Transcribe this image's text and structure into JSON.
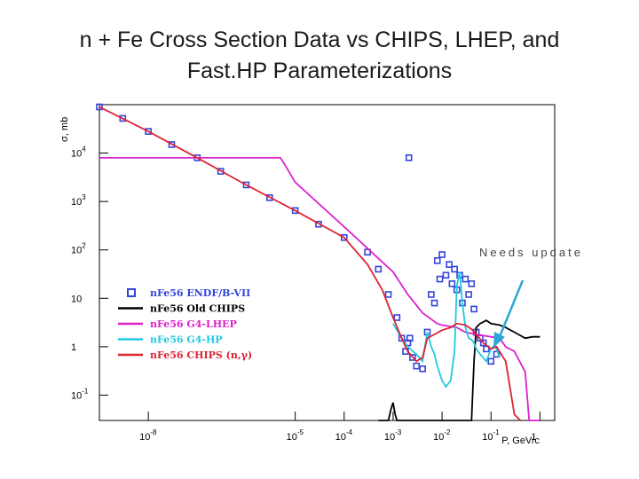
{
  "slide": {
    "title_line1": "n + Fe Cross Section Data vs CHIPS, LHEP, and",
    "title_line2": "Fast.HP Parameterizations"
  },
  "annotation": {
    "text": "Needs update",
    "arrow_color": "#2aa6d8"
  },
  "chart_data": {
    "type": "line",
    "title": "",
    "xlabel": "P, GeV/c",
    "ylabel": "σ, mb",
    "x_scale": "log",
    "y_scale": "log",
    "xlim": [
      1e-09,
      2
    ],
    "ylim": [
      0.03,
      100000
    ],
    "x_ticks": [
      {
        "base": "10",
        "exp": "-8",
        "value": 1e-08
      },
      {
        "base": "10",
        "exp": "-5",
        "value": 1e-05
      },
      {
        "base": "10",
        "exp": "-4",
        "value": 0.0001
      },
      {
        "base": "10",
        "exp": "-3",
        "value": 0.001
      },
      {
        "base": "10",
        "exp": "-2",
        "value": 0.01
      },
      {
        "base": "10",
        "exp": "-1",
        "value": 0.1
      },
      {
        "base": "1",
        "exp": "",
        "value": 1
      }
    ],
    "y_ticks": [
      {
        "base": "10",
        "exp": "4",
        "value": 10000
      },
      {
        "base": "10",
        "exp": "3",
        "value": 1000
      },
      {
        "base": "10",
        "exp": "2",
        "value": 100
      },
      {
        "base": "10",
        "exp": "",
        "value": 10
      },
      {
        "base": "1",
        "exp": "",
        "value": 1
      },
      {
        "base": "10",
        "exp": "-1",
        "value": 0.1
      }
    ],
    "legend_position": "bottom-left",
    "series": [
      {
        "name": "nFe56 ENDF/B-VII",
        "color": "#3344dd",
        "style": "markers",
        "x": [
          1e-09,
          3e-09,
          1e-08,
          3e-08,
          1e-07,
          3e-07,
          1e-06,
          3e-06,
          1e-05,
          3e-05,
          0.0001,
          0.0003,
          0.0005,
          0.0008,
          0.0012,
          0.0015,
          0.0018,
          0.002,
          0.0021,
          0.0022,
          0.0025,
          0.003,
          0.004,
          0.005,
          0.006,
          0.007,
          0.008,
          0.009,
          0.01,
          0.012,
          0.014,
          0.016,
          0.018,
          0.02,
          0.023,
          0.026,
          0.03,
          0.035,
          0.04,
          0.045,
          0.05,
          0.06,
          0.07,
          0.08,
          0.1,
          0.13
        ],
        "y": [
          90000,
          52000,
          28000,
          15000,
          8000,
          4200,
          2200,
          1200,
          650,
          340,
          180,
          90,
          40,
          12,
          4,
          1.5,
          0.8,
          1.2,
          8000,
          1.5,
          0.6,
          0.4,
          0.35,
          2,
          12,
          8,
          60,
          25,
          80,
          30,
          50,
          20,
          40,
          15,
          30,
          8,
          25,
          12,
          20,
          6,
          2,
          1.5,
          1.2,
          0.9,
          0.5,
          0.7
        ]
      },
      {
        "name": "nFe56 Old CHIPS",
        "color": "#000000",
        "style": "line",
        "x": [
          0.0005,
          0.0007,
          0.0008,
          0.0009,
          0.001,
          0.0011,
          0.0012,
          0.04,
          0.045,
          0.05,
          0.06,
          0.08,
          0.1,
          0.15,
          0.2,
          0.3,
          0.5,
          0.7,
          1
        ],
        "y": [
          0.03,
          0.03,
          0.03,
          0.05,
          0.07,
          0.04,
          0.03,
          0.03,
          0.5,
          2.5,
          3.0,
          3.5,
          3.0,
          2.8,
          2.5,
          2.0,
          1.5,
          1.6,
          1.6
        ]
      },
      {
        "name": "nFe56 G4-LHEP",
        "color": "#dd22cc",
        "style": "line",
        "x": [
          1e-09,
          1e-08,
          1e-07,
          1e-06,
          5e-06,
          6e-06,
          1e-05,
          0.0001,
          0.001,
          0.002,
          0.004,
          0.008,
          0.01,
          0.02,
          0.03,
          0.05,
          0.07,
          0.1,
          0.15,
          0.2,
          0.3,
          0.5,
          0.6,
          1
        ],
        "y": [
          8000,
          8000,
          8000,
          8000,
          8000,
          6000,
          2500,
          300,
          35,
          12,
          5,
          3,
          2.8,
          2.5,
          2.0,
          1.8,
          1.7,
          1.6,
          1.5,
          1.0,
          0.8,
          0.3,
          0.03,
          0.03
        ]
      },
      {
        "name": "nFe56 G4-HP",
        "color": "#22c8e0",
        "style": "line",
        "x": [
          0.001,
          0.0015,
          0.002,
          0.003,
          0.004,
          0.005,
          0.006,
          0.007,
          0.008,
          0.01,
          0.012,
          0.015,
          0.018,
          0.02,
          0.023,
          0.026,
          0.03,
          0.035,
          0.04,
          0.045,
          0.05,
          0.06,
          0.08,
          0.1,
          0.12,
          0.15
        ],
        "y": [
          3,
          1.5,
          1.0,
          0.7,
          0.5,
          2.0,
          1.0,
          0.7,
          0.4,
          0.2,
          0.15,
          0.2,
          0.8,
          18,
          35,
          8,
          2.5,
          1.5,
          1.4,
          1.2,
          0.9,
          0.7,
          0.5,
          0.9,
          1.1,
          0.6
        ]
      },
      {
        "name": "nFe56 CHIPS (n,γ)",
        "color": "#dd2233",
        "style": "line",
        "x": [
          1e-09,
          1e-08,
          1e-07,
          1e-06,
          1e-05,
          0.0001,
          0.0003,
          0.0006,
          0.001,
          0.0015,
          0.002,
          0.003,
          0.004,
          0.005,
          0.007,
          0.01,
          0.015,
          0.02,
          0.03,
          0.04,
          0.05,
          0.07,
          0.1,
          0.13,
          0.2,
          0.3,
          0.4
        ],
        "y": [
          90000,
          28000,
          8000,
          2200,
          650,
          180,
          50,
          15,
          4,
          1.5,
          0.8,
          0.5,
          0.6,
          1.5,
          1.8,
          2.2,
          2.5,
          3.0,
          2.8,
          2.3,
          1.8,
          1.2,
          0.9,
          1.0,
          0.5,
          0.04,
          0.03
        ]
      }
    ]
  }
}
